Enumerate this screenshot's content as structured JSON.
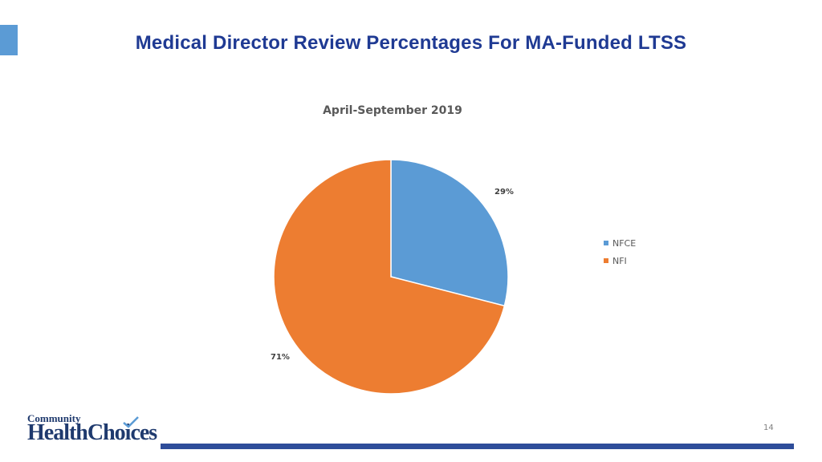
{
  "slide": {
    "title": "Medical Director Review Percentages For MA-Funded LTSS",
    "page_number": "14",
    "accent_color": "#5b9bd5",
    "title_color": "#1f3a93",
    "footer_bar_color": "#2e4d9a"
  },
  "logo": {
    "top_text": "Community",
    "main_text": "HealthChoices",
    "check_icon": "checkmark-icon"
  },
  "chart_data": {
    "type": "pie",
    "title": "April-September 2019",
    "categories": [
      "NFCE",
      "NFI"
    ],
    "values": [
      29,
      71
    ],
    "data_labels": [
      "29%",
      "71%"
    ],
    "colors": [
      "#5b9bd5",
      "#ed7d31"
    ],
    "legend_position": "right"
  }
}
